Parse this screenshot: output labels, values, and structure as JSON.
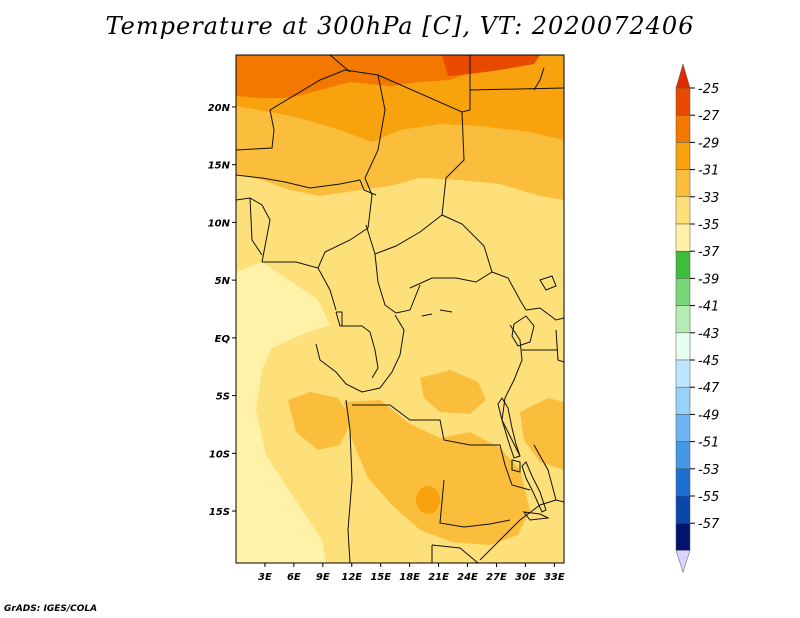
{
  "title": "Temperature at 300hPa [C], VT: 2020072406",
  "credit": "GrADS: IGES/COLA",
  "map": {
    "lon_range": [
      0,
      34
    ],
    "lat_range": [
      -19.5,
      24.5
    ],
    "lat_ticks": [
      {
        "value": 20,
        "label": "20N"
      },
      {
        "value": 15,
        "label": "15N"
      },
      {
        "value": 10,
        "label": "10N"
      },
      {
        "value": 5,
        "label": "5N"
      },
      {
        "value": 0,
        "label": "EQ"
      },
      {
        "value": -5,
        "label": "5S"
      },
      {
        "value": -10,
        "label": "10S"
      },
      {
        "value": -15,
        "label": "15S"
      }
    ],
    "lon_ticks": [
      {
        "value": 3,
        "label": "3E"
      },
      {
        "value": 6,
        "label": "6E"
      },
      {
        "value": 9,
        "label": "9E"
      },
      {
        "value": 12,
        "label": "12E"
      },
      {
        "value": 15,
        "label": "15E"
      },
      {
        "value": 18,
        "label": "18E"
      },
      {
        "value": 21,
        "label": "21E"
      },
      {
        "value": 24,
        "label": "24E"
      },
      {
        "value": 27,
        "label": "27E"
      },
      {
        "value": 30,
        "label": "30E"
      },
      {
        "value": 33,
        "label": "33E"
      }
    ]
  },
  "colorbar": {
    "labels": [
      "-25",
      "-27",
      "-29",
      "-31",
      "-33",
      "-35",
      "-37",
      "-39",
      "-41",
      "-43",
      "-45",
      "-47",
      "-49",
      "-51",
      "-53",
      "-55",
      "-57"
    ],
    "colors": [
      "#e84a00",
      "#f27800",
      "#f8a20e",
      "#fabd3c",
      "#fde07a",
      "#fff2a8",
      "#3cbe3c",
      "#78d778",
      "#b4ecb4",
      "#e6fff0",
      "#bee6ff",
      "#96d2fa",
      "#6eb4f0",
      "#4696e6",
      "#1e6ed2",
      "#0a46aa",
      "#00146e"
    ],
    "top_arrow_color": "#e02a00",
    "bottom_arrow_color": "#dcd2ff"
  }
}
